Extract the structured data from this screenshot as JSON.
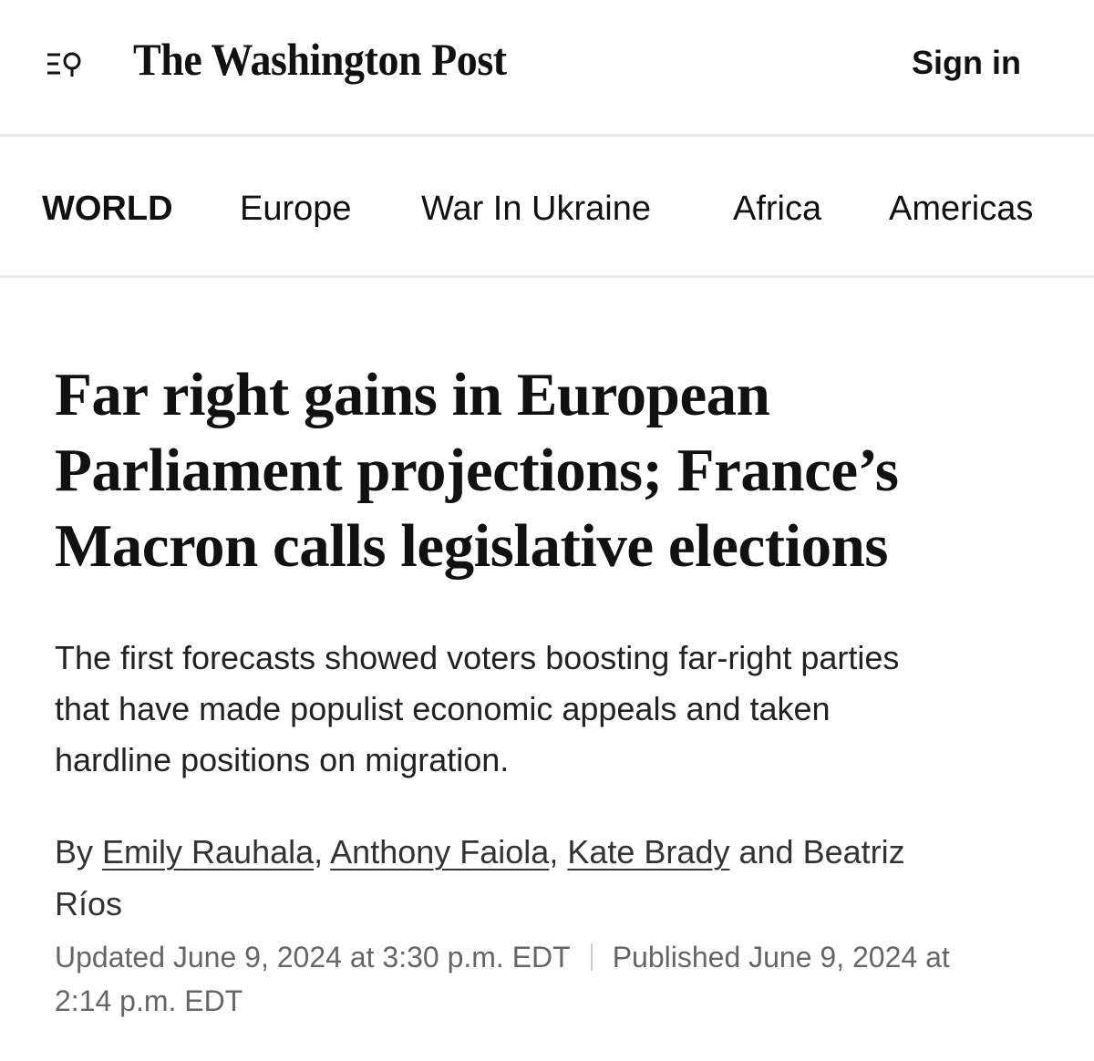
{
  "header": {
    "logo": "The Washington Post",
    "sign_in": "Sign in"
  },
  "nav": {
    "items": [
      "WORLD",
      "Europe",
      "War In Ukraine",
      "Africa",
      "Americas"
    ]
  },
  "article": {
    "headline_lines": [
      "Far right gains in European",
      "Parliament projections; France’s",
      "Macron calls legislative elections"
    ],
    "dek_lines": [
      "The first forecasts showed voters boosting far-right parties",
      "that have made populist economic appeals and taken",
      "hardline positions on migration."
    ],
    "byline": {
      "prefix": "By",
      "authors": [
        "Emily Rauhala",
        "Anthony Faiola",
        "Kate Brady",
        "Beatriz Ríos"
      ],
      "separator": ",",
      "conjunction": "and"
    },
    "updated": "Updated June 9, 2024 at 3:30 p.m. EDT",
    "published": "Published June 9, 2024 at 2:14 p.m. EDT"
  }
}
